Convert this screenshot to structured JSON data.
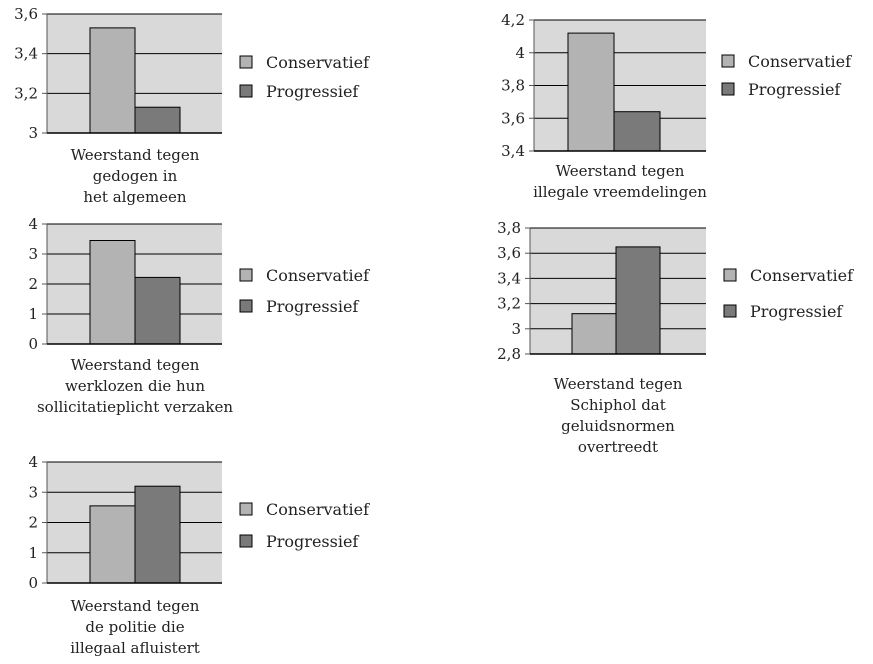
{
  "colors": {
    "plot_bg": "#d9d9d9",
    "grid": "#000000",
    "conservatief": "#b3b3b3",
    "progressief": "#7a7a7a"
  },
  "chart_data": [
    {
      "type": "bar",
      "categories": [
        "Conservatief",
        "Progressief"
      ],
      "values": [
        3.53,
        3.13
      ],
      "ylim": [
        3,
        3.6
      ],
      "yticks": [
        "3",
        "3,2",
        "3,4",
        "3,6"
      ],
      "caption": [
        "Weerstand tegen",
        "gedogen in",
        "het algemeen"
      ],
      "legend": [
        "Conservatief",
        "Progressief"
      ],
      "grid": true,
      "legend_position": "right"
    },
    {
      "type": "bar",
      "categories": [
        "Conservatief",
        "Progressief"
      ],
      "values": [
        4.12,
        3.64
      ],
      "ylim": [
        3.4,
        4.2
      ],
      "yticks": [
        "3,4",
        "3,6",
        "3,8",
        "4",
        "4,2"
      ],
      "caption": [
        "Weerstand tegen",
        "illegale vreemdelingen"
      ],
      "legend": [
        "Conservatief",
        "Progressief"
      ],
      "grid": true,
      "legend_position": "right"
    },
    {
      "type": "bar",
      "categories": [
        "Conservatief",
        "Progressief"
      ],
      "values": [
        3.45,
        2.22
      ],
      "ylim": [
        0,
        4
      ],
      "yticks": [
        "0",
        "1",
        "2",
        "3",
        "4"
      ],
      "caption": [
        "Weerstand tegen",
        "werklozen die hun",
        "sollicitatieplicht verzaken"
      ],
      "legend": [
        "Conservatief",
        "Progressief"
      ],
      "grid": true,
      "legend_position": "right"
    },
    {
      "type": "bar",
      "categories": [
        "Conservatief",
        "Progressief"
      ],
      "values": [
        3.12,
        3.65
      ],
      "ylim": [
        2.8,
        3.8
      ],
      "yticks": [
        "2,8",
        "3",
        "3,2",
        "3,4",
        "3,6",
        "3,8"
      ],
      "caption": [
        "Weerstand tegen",
        "Schiphol dat",
        "geluidsnormen",
        "overtreedt"
      ],
      "legend": [
        "Conservatief",
        "Progressief"
      ],
      "grid": true,
      "legend_position": "right"
    },
    {
      "type": "bar",
      "categories": [
        "Conservatief",
        "Progressief"
      ],
      "values": [
        2.55,
        3.2
      ],
      "ylim": [
        0,
        4
      ],
      "yticks": [
        "0",
        "1",
        "2",
        "3",
        "4"
      ],
      "caption": [
        "Weerstand tegen",
        "de politie die",
        "illegaal afluistert"
      ],
      "legend": [
        "Conservatief",
        "Progressief"
      ],
      "grid": true,
      "legend_position": "right"
    }
  ]
}
